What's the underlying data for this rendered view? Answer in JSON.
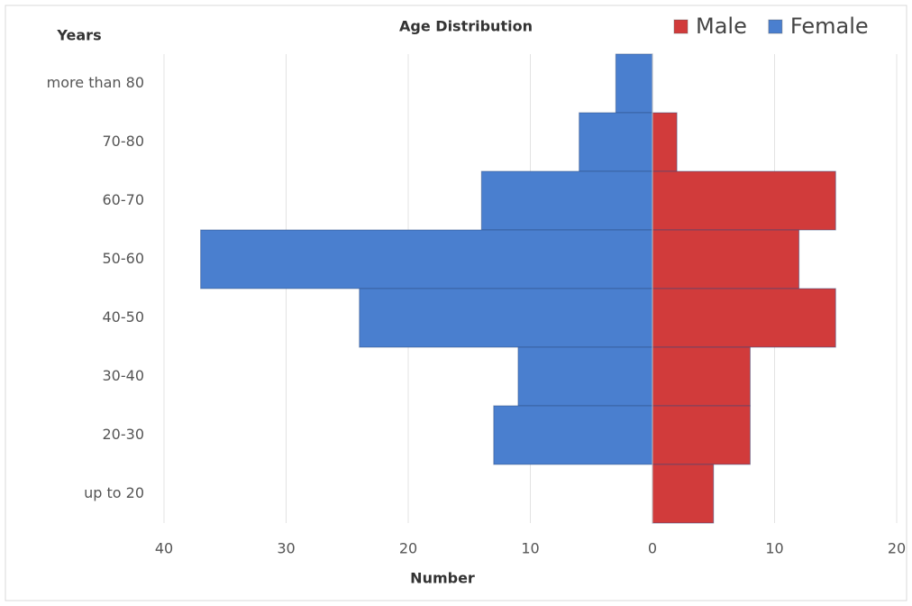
{
  "chart_data": {
    "type": "bar",
    "orientation": "horizontal",
    "title": "Age Distribution",
    "y_label": "Years",
    "x_label": "Number",
    "categories": [
      "more than 80",
      "70-80",
      "60-70",
      "50-60",
      "40-50",
      "30-40",
      "20-30",
      "up to 20"
    ],
    "series": [
      {
        "name": "Male",
        "color": "#d13b3b",
        "values": [
          0,
          2,
          15,
          12,
          15,
          8,
          8,
          5
        ]
      },
      {
        "name": "Female",
        "color": "#4a7fcf",
        "values": [
          -3,
          -6,
          -14,
          -37,
          -24,
          -11,
          -13,
          0
        ]
      }
    ],
    "xlim": [
      -40,
      20
    ],
    "xticks": [
      {
        "value": -40,
        "label": "40"
      },
      {
        "value": -30,
        "label": "30"
      },
      {
        "value": -20,
        "label": "20"
      },
      {
        "value": -10,
        "label": "10"
      },
      0,
      10,
      20
    ],
    "grid": true,
    "legend": "top-right"
  }
}
